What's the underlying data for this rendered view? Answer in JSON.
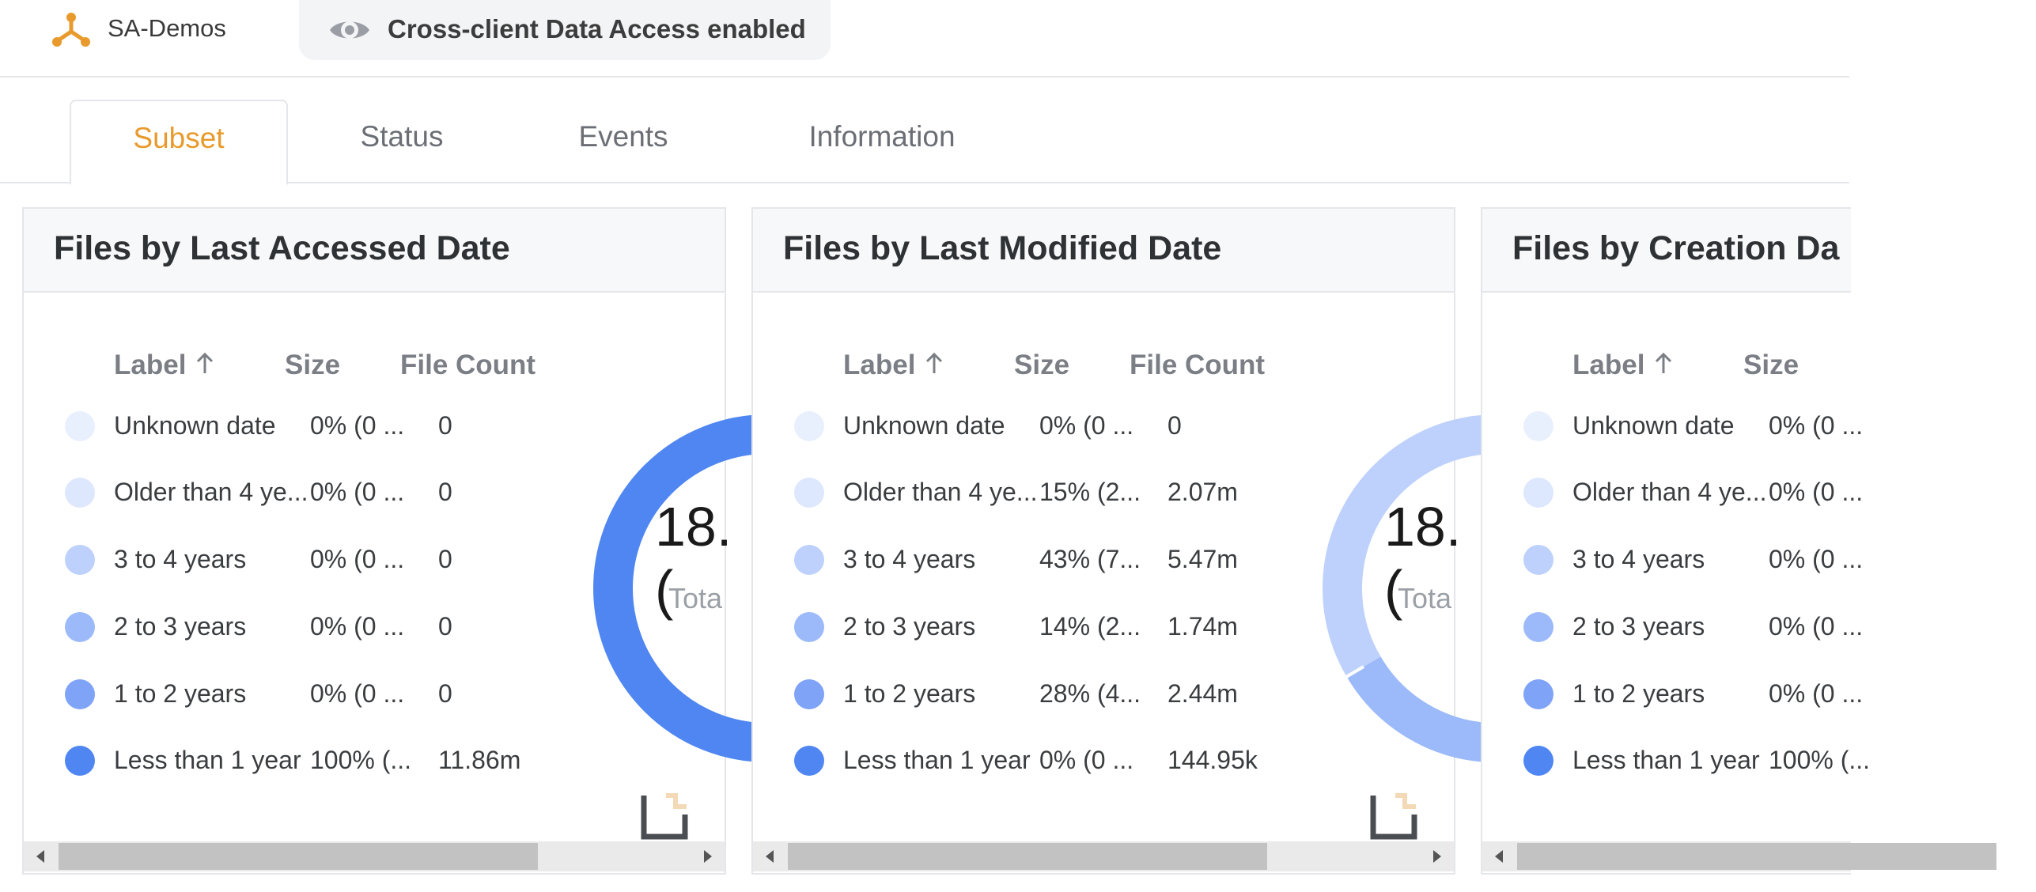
{
  "header": {
    "brand_label": "SA-Demos",
    "access_notice": "Cross-client Data Access enabled",
    "brand_color": "#e99a2c"
  },
  "tabs": [
    {
      "label": "Subset",
      "active": true
    },
    {
      "label": "Status",
      "active": false
    },
    {
      "label": "Events",
      "active": false
    },
    {
      "label": "Information",
      "active": false
    }
  ],
  "legend_colors": [
    "#e9f0fd",
    "#dde7fd",
    "#bdd1fc",
    "#9cbaf9",
    "#7ea3f7",
    "#4f86f1"
  ],
  "panels": [
    {
      "title": "Files by Last Accessed Date",
      "columns": {
        "label": "Label",
        "size": "Size",
        "file_count": "File Count"
      },
      "rows": [
        {
          "label": "Unknown date",
          "size": "0% (0 ...",
          "count": "0"
        },
        {
          "label": "Older than 4 ye...",
          "size": "0% (0 ...",
          "count": "0"
        },
        {
          "label": "3 to 4 years",
          "size": "0% (0 ...",
          "count": "0"
        },
        {
          "label": "2 to 3 years",
          "size": "0% (0 ...",
          "count": "0"
        },
        {
          "label": "1 to 2 years",
          "size": "0% (0 ...",
          "count": "0"
        },
        {
          "label": "Less than 1 year",
          "size": "100% (...",
          "count": "11.86m"
        }
      ],
      "donut": {
        "total": "18.(",
        "subtitle": "Tota"
      }
    },
    {
      "title": "Files by Last Modified Date",
      "columns": {
        "label": "Label",
        "size": "Size",
        "file_count": "File Count"
      },
      "rows": [
        {
          "label": "Unknown date",
          "size": "0% (0 ...",
          "count": "0"
        },
        {
          "label": "Older than 4 ye...",
          "size": "15% (2...",
          "count": "2.07m"
        },
        {
          "label": "3 to 4 years",
          "size": "43% (7...",
          "count": "5.47m"
        },
        {
          "label": "2 to 3 years",
          "size": "14% (2...",
          "count": "1.74m"
        },
        {
          "label": "1 to 2 years",
          "size": "28% (4...",
          "count": "2.44m"
        },
        {
          "label": "Less than 1 year",
          "size": "0% (0 ...",
          "count": "144.95k"
        }
      ],
      "donut": {
        "total": "18.(",
        "subtitle": "Tota"
      }
    },
    {
      "title": "Files by Creation Da",
      "columns": {
        "label": "Label",
        "size": "Size",
        "file_count": ""
      },
      "rows": [
        {
          "label": "Unknown date",
          "size": "0% (0 ..."
        },
        {
          "label": "Older than 4 ye...",
          "size": "0% (0 ..."
        },
        {
          "label": "3 to 4 years",
          "size": "0% (0 ..."
        },
        {
          "label": "2 to 3 years",
          "size": "0% (0 ..."
        },
        {
          "label": "1 to 2 years",
          "size": "0% (0 ..."
        },
        {
          "label": "Less than 1 year",
          "size": "100% (..."
        }
      ],
      "donut": {
        "total": "",
        "subtitle": ""
      }
    }
  ]
}
